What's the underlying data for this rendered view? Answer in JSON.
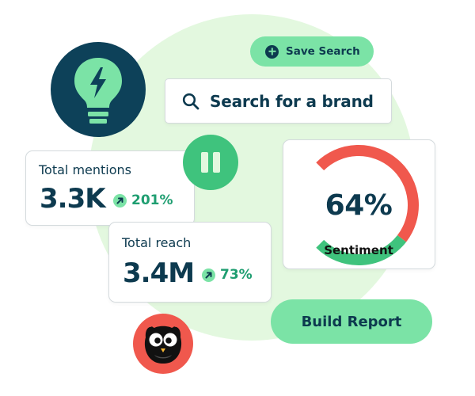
{
  "save_search": {
    "label": "Save Search",
    "icon": "plus-circle-icon"
  },
  "search": {
    "text": "Search for a brand",
    "icon": "search-icon"
  },
  "stats": {
    "mentions": {
      "label": "Total mentions",
      "value": "3.3K",
      "change": "201%",
      "icon": "arrow-up-right-icon"
    },
    "reach": {
      "label": "Total reach",
      "value": "3.4M",
      "change": "73%",
      "icon": "arrow-up-right-icon"
    }
  },
  "sentiment": {
    "value": "64%",
    "label": "Sentiment",
    "positive_fraction": 0.64,
    "colors": {
      "positive": "#3fc37d",
      "negative": "#f0584d"
    }
  },
  "actions": {
    "build_report": "Build Report"
  },
  "badges": {
    "bulb": "lightbulb-icon",
    "pause": "pause-icon",
    "logo": "owl-logo"
  },
  "colors": {
    "navy": "#0d3a4f",
    "mint": "#7be3a6",
    "green": "#3fc37d",
    "coral": "#f0584d",
    "background_blob": "#e3f8df"
  }
}
